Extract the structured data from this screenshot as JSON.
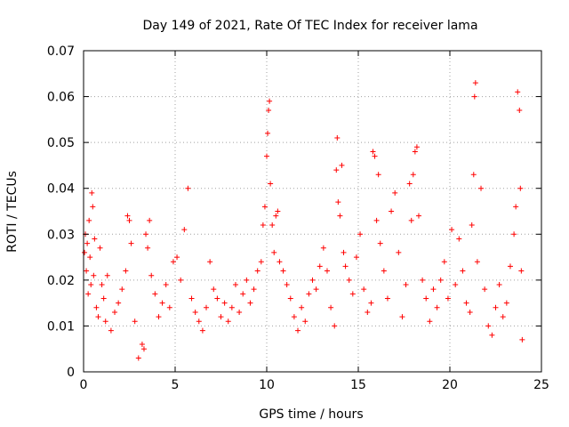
{
  "chart_data": {
    "type": "scatter",
    "title": "Day 149 of 2021, Rate Of TEC Index for receiver lama",
    "xlabel": "GPS time / hours",
    "ylabel": "ROTI / TECUs",
    "xlim": [
      0,
      25
    ],
    "ylim": [
      0,
      0.07
    ],
    "x_ticks": [
      "0",
      "5",
      "10",
      "15",
      "20",
      "25"
    ],
    "y_ticks": [
      "0",
      "0.01",
      "0.02",
      "0.03",
      "0.04",
      "0.05",
      "0.06",
      "0.07"
    ],
    "grid": true,
    "marker": "+",
    "color": "#ff0000",
    "series": [
      {
        "points": [
          [
            0.05,
            0.026
          ],
          [
            0.1,
            0.03
          ],
          [
            0.15,
            0.022
          ],
          [
            0.2,
            0.028
          ],
          [
            0.25,
            0.017
          ],
          [
            0.3,
            0.033
          ],
          [
            0.35,
            0.025
          ],
          [
            0.4,
            0.019
          ],
          [
            0.45,
            0.039
          ],
          [
            0.5,
            0.036
          ],
          [
            0.55,
            0.021
          ],
          [
            0.6,
            0.029
          ],
          [
            0.7,
            0.014
          ],
          [
            0.8,
            0.012
          ],
          [
            0.9,
            0.027
          ],
          [
            1.0,
            0.019
          ],
          [
            1.1,
            0.016
          ],
          [
            1.2,
            0.011
          ],
          [
            1.3,
            0.021
          ],
          [
            1.5,
            0.009
          ],
          [
            1.7,
            0.013
          ],
          [
            1.9,
            0.015
          ],
          [
            2.1,
            0.018
          ],
          [
            2.3,
            0.022
          ],
          [
            2.4,
            0.034
          ],
          [
            2.5,
            0.033
          ],
          [
            2.6,
            0.028
          ],
          [
            2.8,
            0.011
          ],
          [
            3.0,
            0.003
          ],
          [
            3.2,
            0.006
          ],
          [
            3.3,
            0.005
          ],
          [
            3.4,
            0.03
          ],
          [
            3.5,
            0.027
          ],
          [
            3.6,
            0.033
          ],
          [
            3.7,
            0.021
          ],
          [
            3.9,
            0.017
          ],
          [
            4.1,
            0.012
          ],
          [
            4.3,
            0.015
          ],
          [
            4.5,
            0.019
          ],
          [
            4.7,
            0.014
          ],
          [
            4.9,
            0.024
          ],
          [
            5.1,
            0.025
          ],
          [
            5.3,
            0.02
          ],
          [
            5.5,
            0.031
          ],
          [
            5.7,
            0.04
          ],
          [
            5.9,
            0.016
          ],
          [
            6.1,
            0.013
          ],
          [
            6.3,
            0.011
          ],
          [
            6.5,
            0.009
          ],
          [
            6.7,
            0.014
          ],
          [
            6.9,
            0.024
          ],
          [
            7.1,
            0.018
          ],
          [
            7.3,
            0.016
          ],
          [
            7.5,
            0.012
          ],
          [
            7.7,
            0.015
          ],
          [
            7.9,
            0.011
          ],
          [
            8.1,
            0.014
          ],
          [
            8.3,
            0.019
          ],
          [
            8.5,
            0.013
          ],
          [
            8.7,
            0.017
          ],
          [
            8.9,
            0.02
          ],
          [
            9.1,
            0.015
          ],
          [
            9.3,
            0.018
          ],
          [
            9.5,
            0.022
          ],
          [
            9.7,
            0.024
          ],
          [
            9.8,
            0.032
          ],
          [
            9.9,
            0.036
          ],
          [
            10.0,
            0.047
          ],
          [
            10.05,
            0.052
          ],
          [
            10.1,
            0.057
          ],
          [
            10.15,
            0.059
          ],
          [
            10.2,
            0.041
          ],
          [
            10.3,
            0.032
          ],
          [
            10.4,
            0.026
          ],
          [
            10.5,
            0.034
          ],
          [
            10.6,
            0.035
          ],
          [
            10.7,
            0.024
          ],
          [
            10.9,
            0.022
          ],
          [
            11.1,
            0.019
          ],
          [
            11.3,
            0.016
          ],
          [
            11.5,
            0.012
          ],
          [
            11.7,
            0.009
          ],
          [
            11.9,
            0.014
          ],
          [
            12.1,
            0.011
          ],
          [
            12.3,
            0.017
          ],
          [
            12.5,
            0.02
          ],
          [
            12.7,
            0.018
          ],
          [
            12.9,
            0.023
          ],
          [
            13.1,
            0.027
          ],
          [
            13.3,
            0.022
          ],
          [
            13.5,
            0.014
          ],
          [
            13.7,
            0.01
          ],
          [
            13.8,
            0.044
          ],
          [
            13.85,
            0.051
          ],
          [
            13.9,
            0.037
          ],
          [
            14.0,
            0.034
          ],
          [
            14.1,
            0.045
          ],
          [
            14.2,
            0.026
          ],
          [
            14.3,
            0.023
          ],
          [
            14.5,
            0.02
          ],
          [
            14.7,
            0.017
          ],
          [
            14.9,
            0.025
          ],
          [
            15.1,
            0.03
          ],
          [
            15.3,
            0.018
          ],
          [
            15.5,
            0.013
          ],
          [
            15.7,
            0.015
          ],
          [
            15.8,
            0.048
          ],
          [
            15.9,
            0.047
          ],
          [
            16.0,
            0.033
          ],
          [
            16.1,
            0.043
          ],
          [
            16.2,
            0.028
          ],
          [
            16.4,
            0.022
          ],
          [
            16.6,
            0.016
          ],
          [
            16.8,
            0.035
          ],
          [
            17.0,
            0.039
          ],
          [
            17.2,
            0.026
          ],
          [
            17.4,
            0.012
          ],
          [
            17.6,
            0.019
          ],
          [
            17.8,
            0.041
          ],
          [
            17.9,
            0.033
          ],
          [
            18.0,
            0.043
          ],
          [
            18.1,
            0.048
          ],
          [
            18.2,
            0.049
          ],
          [
            18.3,
            0.034
          ],
          [
            18.5,
            0.02
          ],
          [
            18.7,
            0.016
          ],
          [
            18.9,
            0.011
          ],
          [
            19.1,
            0.018
          ],
          [
            19.3,
            0.014
          ],
          [
            19.5,
            0.02
          ],
          [
            19.7,
            0.024
          ],
          [
            19.9,
            0.016
          ],
          [
            20.1,
            0.031
          ],
          [
            20.3,
            0.019
          ],
          [
            20.5,
            0.029
          ],
          [
            20.7,
            0.022
          ],
          [
            20.9,
            0.015
          ],
          [
            21.1,
            0.013
          ],
          [
            21.2,
            0.032
          ],
          [
            21.3,
            0.043
          ],
          [
            21.35,
            0.06
          ],
          [
            21.4,
            0.063
          ],
          [
            21.5,
            0.024
          ],
          [
            21.7,
            0.04
          ],
          [
            21.9,
            0.018
          ],
          [
            22.1,
            0.01
          ],
          [
            22.3,
            0.008
          ],
          [
            22.5,
            0.014
          ],
          [
            22.7,
            0.019
          ],
          [
            22.9,
            0.012
          ],
          [
            23.1,
            0.015
          ],
          [
            23.3,
            0.023
          ],
          [
            23.5,
            0.03
          ],
          [
            23.6,
            0.036
          ],
          [
            23.7,
            0.061
          ],
          [
            23.8,
            0.057
          ],
          [
            23.85,
            0.04
          ],
          [
            23.9,
            0.022
          ],
          [
            23.95,
            0.007
          ]
        ]
      }
    ]
  }
}
